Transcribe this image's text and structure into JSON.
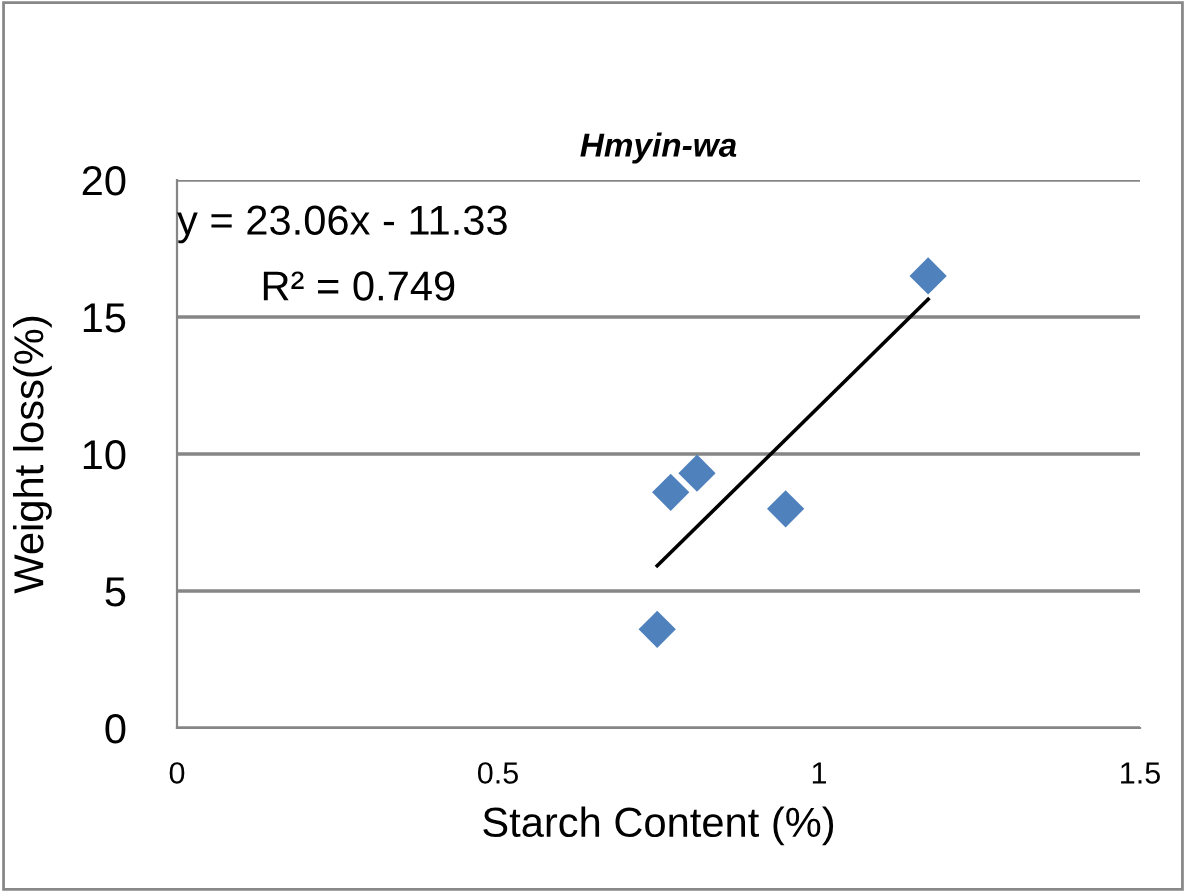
{
  "chart_data": {
    "type": "scatter",
    "title": "Hmyin-wa",
    "xlabel": "Starch Content (%)",
    "ylabel": "Weight loss(%)",
    "annotations": [
      "y = 23.06x - 11.33",
      "R² = 0.749"
    ],
    "xlim": [
      0,
      1.5
    ],
    "xticks": [
      0,
      0.5,
      1,
      1.5
    ],
    "ylim": [
      0,
      20
    ],
    "yticks": [
      0,
      5,
      10,
      15,
      20
    ],
    "grid": "y",
    "legend": false,
    "series": [
      {
        "color": "#4f81bd",
        "marker": "diamond",
        "x": [
          0.748,
          0.769,
          0.81,
          0.948,
          1.17
        ],
        "values": [
          3.6,
          8.6,
          9.3,
          8.0,
          16.5
        ]
      },
      {
        "type": "line",
        "color": "#000000",
        "marker": "none",
        "line_style": "solid",
        "x": [
          0.748,
          1.17
        ],
        "values": [
          5.92,
          15.65
        ]
      }
    ]
  }
}
